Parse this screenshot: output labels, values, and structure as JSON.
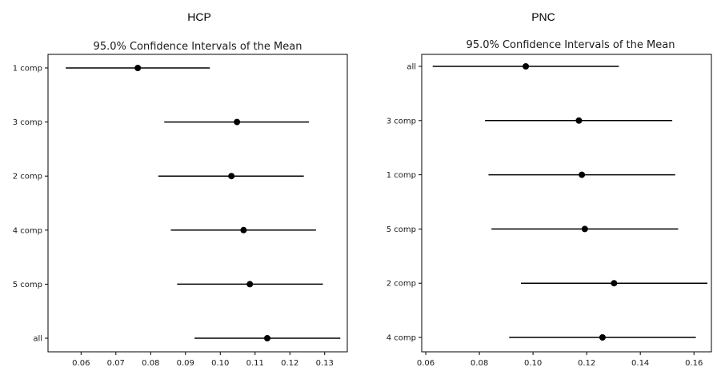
{
  "panels": [
    {
      "label": "HCP"
    },
    {
      "label": "PNC"
    }
  ],
  "chart_data": [
    {
      "type": "scatter",
      "title": "95.0% Confidence Intervals of the Mean",
      "xlabel": "",
      "ylabel": "",
      "xlim": [
        0.0505,
        0.1365
      ],
      "xticks": [
        0.06,
        0.07,
        0.08,
        0.09,
        0.1,
        0.11,
        0.12,
        0.13
      ],
      "xtick_labels": [
        "0.06",
        "0.07",
        "0.08",
        "0.09",
        "0.10",
        "0.11",
        "0.12",
        "0.13"
      ],
      "grid": false,
      "categories": [
        "1 comp",
        "3 comp",
        "2 comp",
        "4 comp",
        "5 comp",
        "all"
      ],
      "means": [
        0.0763,
        0.1048,
        0.1032,
        0.1067,
        0.1085,
        0.1135
      ],
      "ci_low": [
        0.0556,
        0.0839,
        0.0822,
        0.0858,
        0.0876,
        0.0926
      ],
      "ci_high": [
        0.097,
        0.1255,
        0.124,
        0.1275,
        0.1295,
        0.1345
      ]
    },
    {
      "type": "scatter",
      "title": "95.0% Confidence Intervals of the Mean",
      "xlabel": "",
      "ylabel": "",
      "xlim": [
        0.0585,
        0.1665
      ],
      "xticks": [
        0.06,
        0.08,
        0.1,
        0.12,
        0.14,
        0.16
      ],
      "xtick_labels": [
        "0.06",
        "0.08",
        "0.10",
        "0.12",
        "0.14",
        "0.16"
      ],
      "grid": false,
      "categories": [
        "all",
        "3 comp",
        "1 comp",
        "5 comp",
        "2 comp",
        "4 comp"
      ],
      "means": [
        0.0973,
        0.1171,
        0.1182,
        0.1193,
        0.1302,
        0.1259
      ],
      "ci_low": [
        0.0626,
        0.0821,
        0.0834,
        0.0845,
        0.0955,
        0.0911
      ],
      "ci_high": [
        0.132,
        0.1519,
        0.153,
        0.1541,
        0.165,
        0.1607
      ]
    }
  ]
}
